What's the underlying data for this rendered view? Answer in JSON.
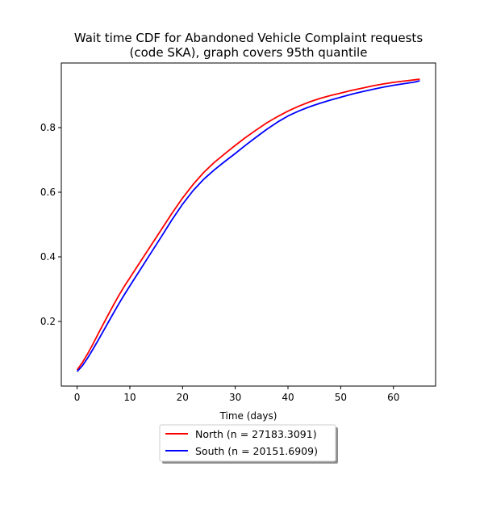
{
  "chart_data": {
    "type": "line",
    "title_line1": "Wait time CDF for Abandoned Vehicle Complaint  requests",
    "title_line2": "(code SKA), graph covers 95th quantile",
    "xlabel": "Time (days)",
    "ylabel": "",
    "xlim": [
      -3,
      68
    ],
    "ylim": [
      0,
      1
    ],
    "xticks": [
      0,
      10,
      20,
      30,
      40,
      50,
      60
    ],
    "yticks": [
      0.2,
      0.4,
      0.6,
      0.8
    ],
    "grid": false,
    "legend_position": "below",
    "series": [
      {
        "name": "North (n = 27183.3091)",
        "color": "#ff0000",
        "x": [
          0,
          1,
          2,
          3,
          4,
          5,
          6,
          7,
          8,
          9,
          10,
          12,
          14,
          16,
          18,
          20,
          22,
          24,
          26,
          28,
          30,
          32,
          34,
          36,
          38,
          40,
          42,
          44,
          46,
          48,
          50,
          52,
          54,
          56,
          58,
          60,
          62,
          64,
          65
        ],
        "y": [
          0.05,
          0.073,
          0.1,
          0.13,
          0.162,
          0.193,
          0.224,
          0.254,
          0.283,
          0.31,
          0.335,
          0.385,
          0.435,
          0.485,
          0.535,
          0.582,
          0.624,
          0.661,
          0.692,
          0.719,
          0.745,
          0.77,
          0.793,
          0.815,
          0.834,
          0.851,
          0.866,
          0.879,
          0.89,
          0.899,
          0.907,
          0.915,
          0.922,
          0.929,
          0.935,
          0.94,
          0.944,
          0.948,
          0.95
        ]
      },
      {
        "name": "South (n = 20151.6909)",
        "color": "#0000ff",
        "x": [
          0,
          1,
          2,
          3,
          4,
          5,
          6,
          7,
          8,
          9,
          10,
          12,
          14,
          16,
          18,
          20,
          22,
          24,
          26,
          28,
          30,
          32,
          34,
          36,
          38,
          40,
          42,
          44,
          46,
          48,
          50,
          52,
          54,
          56,
          58,
          60,
          62,
          64,
          65
        ],
        "y": [
          0.045,
          0.063,
          0.087,
          0.114,
          0.142,
          0.171,
          0.2,
          0.229,
          0.257,
          0.284,
          0.31,
          0.361,
          0.412,
          0.463,
          0.515,
          0.563,
          0.605,
          0.64,
          0.669,
          0.695,
          0.72,
          0.746,
          0.771,
          0.795,
          0.817,
          0.836,
          0.851,
          0.864,
          0.875,
          0.885,
          0.894,
          0.903,
          0.911,
          0.918,
          0.925,
          0.931,
          0.936,
          0.941,
          0.945
        ]
      }
    ]
  }
}
